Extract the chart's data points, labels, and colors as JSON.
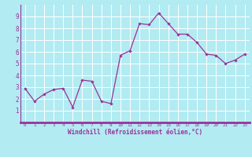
{
  "x": [
    0,
    1,
    2,
    3,
    4,
    5,
    6,
    7,
    8,
    9,
    10,
    11,
    12,
    13,
    14,
    15,
    16,
    17,
    18,
    19,
    20,
    21,
    22,
    23
  ],
  "y": [
    2.9,
    1.8,
    2.4,
    2.8,
    2.9,
    1.3,
    3.6,
    3.5,
    1.8,
    1.6,
    5.7,
    6.1,
    8.4,
    8.3,
    9.3,
    8.4,
    7.5,
    7.5,
    6.8,
    5.8,
    5.7,
    5.0,
    5.3,
    5.8
  ],
  "line_color": "#993399",
  "marker": "D",
  "marker_size": 1.8,
  "bg_color": "#b2ebf2",
  "grid_color": "#ffffff",
  "spine_color": "#993399",
  "xlabel": "Windchill (Refroidissement éolien,°C)",
  "xlabel_color": "#993399",
  "tick_color": "#993399",
  "xlim": [
    -0.5,
    23.5
  ],
  "ylim": [
    0,
    10
  ],
  "xticks": [
    0,
    1,
    2,
    3,
    4,
    5,
    6,
    7,
    8,
    9,
    10,
    11,
    12,
    13,
    14,
    15,
    16,
    17,
    18,
    19,
    20,
    21,
    22,
    23
  ],
  "yticks": [
    1,
    2,
    3,
    4,
    5,
    6,
    7,
    8,
    9
  ],
  "xtick_fontsize": 4.2,
  "ytick_fontsize": 5.5,
  "xlabel_fontsize": 5.5
}
